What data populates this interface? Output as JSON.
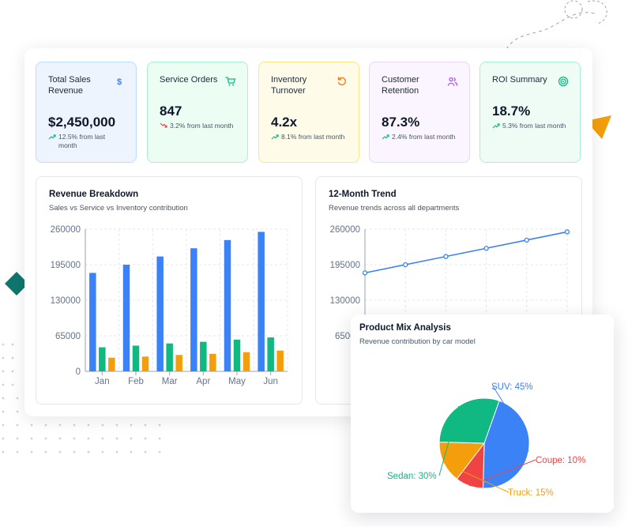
{
  "kpis": [
    {
      "title": "Total Sales Revenue",
      "value": "$2,450,000",
      "change": "12.5% from last month",
      "trend": "up",
      "icon": "dollar-icon",
      "bg": "#eef4fe",
      "border": "#bfdbfe",
      "accent": "#3b82f6"
    },
    {
      "title": "Service Orders",
      "value": "847",
      "change": "3.2% from last month",
      "trend": "down",
      "icon": "cart-icon",
      "bg": "#ecfdf3",
      "border": "#a7f3d0",
      "accent": "#10b981"
    },
    {
      "title": "Inventory Turnover",
      "value": "4.2x",
      "change": "8.1% from last month",
      "trend": "up",
      "icon": "refresh-icon",
      "bg": "#fefce8",
      "border": "#fde68a",
      "accent": "#f97316"
    },
    {
      "title": "Customer Retention",
      "value": "87.3%",
      "change": "2.4% from last month",
      "trend": "up",
      "icon": "users-icon",
      "bg": "#faf5ff",
      "border": "#e9d5ff",
      "accent": "#a855f7"
    },
    {
      "title": "ROI Summary",
      "value": "18.7%",
      "change": "5.3% from last month",
      "trend": "up",
      "icon": "target-icon",
      "bg": "#effcf6",
      "border": "#a7f3d0",
      "accent": "#10b981"
    }
  ],
  "revenue": {
    "title": "Revenue Breakdown",
    "subtitle": "Sales vs Service vs Inventory contribution"
  },
  "trend": {
    "title": "12-Month Trend",
    "subtitle": "Revenue trends across all departments"
  },
  "pie": {
    "title": "Product Mix Analysis",
    "subtitle": "Revenue contribution by car model"
  },
  "colors": {
    "blue": "#3b82f6",
    "green": "#10b981",
    "orange": "#f59e0b",
    "red": "#ef4444"
  },
  "chart_data": [
    {
      "type": "bar",
      "title": "Revenue Breakdown",
      "subtitle": "Sales vs Service vs Inventory contribution",
      "categories": [
        "Jan",
        "Feb",
        "Mar",
        "Apr",
        "May",
        "Jun"
      ],
      "ylim": [
        0,
        260000
      ],
      "yticks": [
        "0",
        "65000",
        "130000",
        "195000",
        "260000"
      ],
      "grid": true,
      "series": [
        {
          "values": [
            180000,
            195000,
            210000,
            225000,
            240000,
            255000
          ],
          "color": "#3b82f6"
        },
        {
          "values": [
            44000,
            47000,
            51000,
            54000,
            58000,
            62000
          ],
          "color": "#10b981"
        },
        {
          "values": [
            25000,
            27000,
            30000,
            32000,
            35000,
            38000
          ],
          "color": "#f59e0b"
        }
      ]
    },
    {
      "type": "line",
      "title": "12-Month Trend",
      "subtitle": "Revenue trends across all departments",
      "ylim": [
        0,
        260000
      ],
      "yticks": [
        "65000",
        "130000",
        "195000",
        "260000"
      ],
      "grid": true,
      "series": [
        {
          "values": [
            180000,
            195000,
            210000,
            225000,
            240000,
            255000
          ],
          "color": "#3b82f6"
        }
      ]
    },
    {
      "type": "pie",
      "title": "Product Mix Analysis",
      "subtitle": "Revenue contribution by car model",
      "slices": [
        {
          "label": "SUV: 45%",
          "value": 45,
          "color": "#3b82f6"
        },
        {
          "label": "Coupe: 10%",
          "value": 10,
          "color": "#ef4444"
        },
        {
          "label": "Truck: 15%",
          "value": 15,
          "color": "#f59e0b"
        },
        {
          "label": "Sedan: 30%",
          "value": 30,
          "color": "#10b981"
        }
      ]
    }
  ]
}
